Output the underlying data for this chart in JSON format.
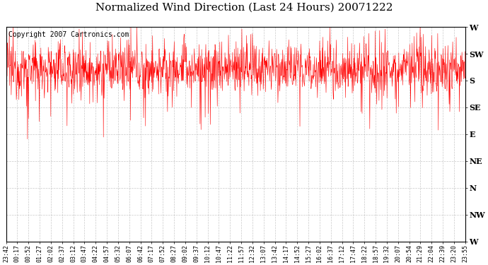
{
  "title": "Normalized Wind Direction (Last 24 Hours) 20071222",
  "copyright_text": "Copyright 2007 Cartronics.com",
  "line_color": "#ff0000",
  "background_color": "#ffffff",
  "grid_color": "#bbbbbb",
  "y_tick_labels": [
    "W",
    "NW",
    "N",
    "NE",
    "E",
    "SE",
    "S",
    "SW",
    "W"
  ],
  "y_tick_values": [
    0,
    45,
    90,
    135,
    180,
    225,
    270,
    315,
    360
  ],
  "ylim": [
    0,
    360
  ],
  "x_labels": [
    "23:42",
    "00:17",
    "00:52",
    "01:27",
    "02:02",
    "02:37",
    "03:12",
    "03:47",
    "04:22",
    "04:57",
    "05:32",
    "06:07",
    "06:42",
    "07:17",
    "07:52",
    "08:27",
    "09:02",
    "09:37",
    "10:12",
    "10:47",
    "11:22",
    "11:57",
    "12:32",
    "13:07",
    "13:42",
    "14:17",
    "14:52",
    "15:27",
    "16:02",
    "16:37",
    "17:12",
    "17:47",
    "18:22",
    "18:57",
    "19:32",
    "20:07",
    "20:54",
    "21:29",
    "22:04",
    "22:39",
    "23:20",
    "23:55"
  ],
  "title_fontsize": 11,
  "copyright_fontsize": 7,
  "figsize": [
    6.9,
    3.75
  ],
  "dpi": 100
}
